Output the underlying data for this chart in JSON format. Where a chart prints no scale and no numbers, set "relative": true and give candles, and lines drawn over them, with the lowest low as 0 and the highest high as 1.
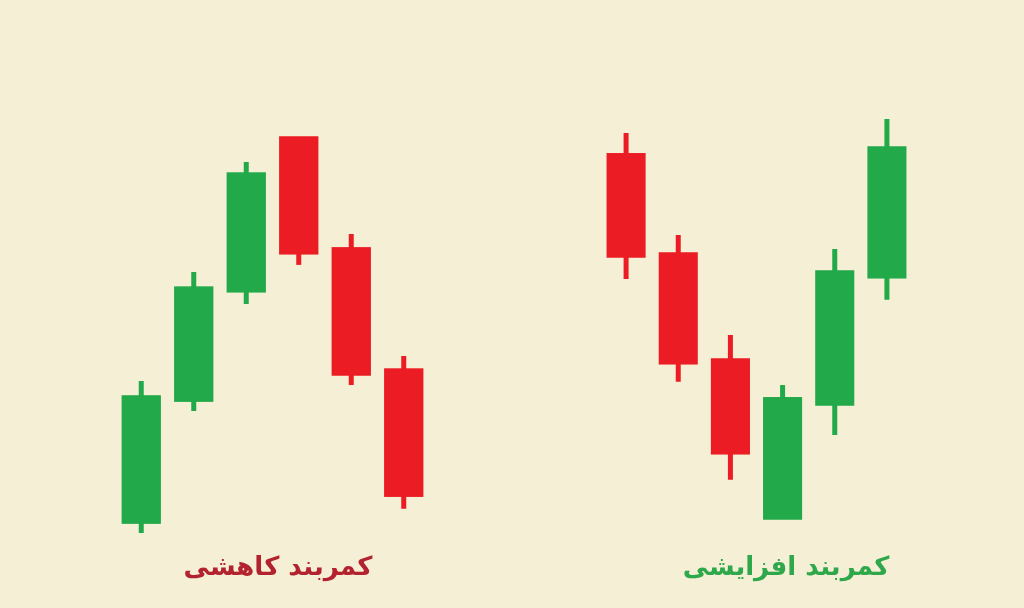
{
  "chart_data": [
    {
      "type": "candlestick",
      "title": "کمربند کاهشی",
      "relative": true,
      "categories": [
        null,
        null,
        null,
        null,
        null,
        null
      ],
      "ohlc": [
        [
          0.025,
          0.384,
          0,
          0.346
        ],
        [
          0.333,
          0.659,
          0.308,
          0.621
        ],
        [
          0.609,
          0.937,
          0.578,
          0.909
        ],
        [
          1,
          1,
          0.677,
          0.705
        ],
        [
          0.72,
          0.755,
          0.374,
          0.399
        ],
        [
          0.414,
          0.447,
          0.061,
          0.093
        ]
      ],
      "colors": [
        "#22a94a",
        "#22a94a",
        "#22a94a",
        "#ec1c24",
        "#ec1c24",
        "#ec1c24"
      ]
    },
    {
      "type": "candlestick",
      "title": "کمربند افزایشی",
      "relative": true,
      "categories": [
        null,
        null,
        null,
        null,
        null,
        null
      ],
      "ohlc": [
        [
          0.913,
          0.965,
          0.6,
          0.655
        ],
        [
          0.665,
          0.71,
          0.343,
          0.388
        ],
        [
          0.4,
          0.46,
          0.098,
          0.163
        ],
        [
          0,
          0.335,
          0,
          0.303
        ],
        [
          0.285,
          0.675,
          0.21,
          0.62
        ],
        [
          0.603,
          1,
          0.548,
          0.93
        ]
      ],
      "colors": [
        "#ec1c24",
        "#ec1c24",
        "#ec1c24",
        "#22a94a",
        "#22a94a",
        "#22a94a"
      ]
    }
  ]
}
